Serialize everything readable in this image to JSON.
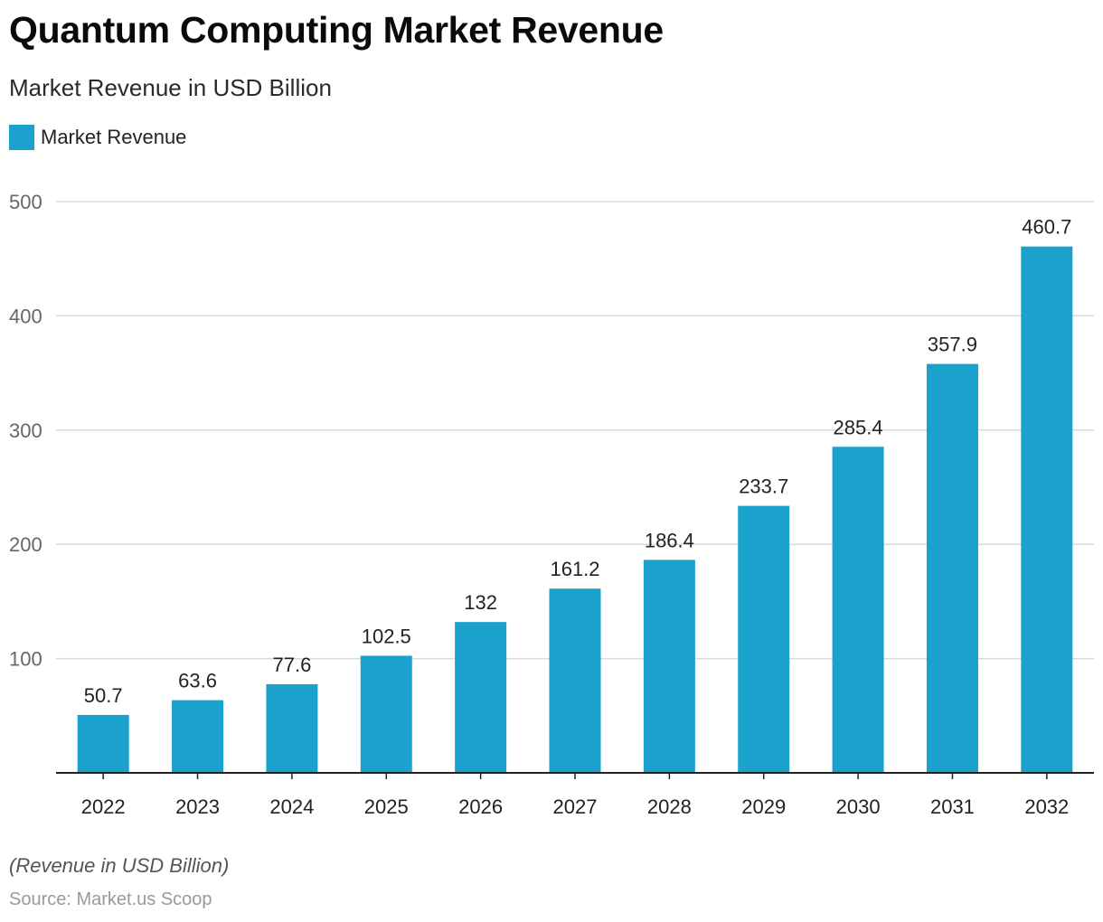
{
  "header": {
    "title": "Quantum Computing Market Revenue",
    "subtitle": "Market Revenue in USD Billion"
  },
  "legend": {
    "label": "Market Revenue",
    "color": "#1aa1cc"
  },
  "footer": {
    "note": "(Revenue in USD Billion)",
    "source": "Source: Market.us Scoop"
  },
  "chart_data": {
    "type": "bar",
    "title": "Quantum Computing Market Revenue",
    "subtitle": "Market Revenue in USD Billion",
    "xlabel": "",
    "ylabel": "",
    "categories": [
      "2022",
      "2023",
      "2024",
      "2025",
      "2026",
      "2027",
      "2028",
      "2029",
      "2030",
      "2031",
      "2032"
    ],
    "series": [
      {
        "name": "Market Revenue",
        "values": [
          50.7,
          63.6,
          77.6,
          102.5,
          132,
          161.2,
          186.4,
          233.7,
          285.4,
          357.9,
          460.7
        ],
        "labels": [
          "50.7",
          "63.6",
          "77.6",
          "102.5",
          "132",
          "161.2",
          "186.4",
          "233.7",
          "285.4",
          "357.9",
          "460.7"
        ],
        "color": "#1aa1cc"
      }
    ],
    "ylim": [
      0,
      500
    ],
    "yticks": [
      100,
      200,
      300,
      400,
      500
    ],
    "ytick_labels": [
      "100",
      "200",
      "300",
      "400",
      "500"
    ],
    "grid": true,
    "legend_position": "top-left"
  }
}
